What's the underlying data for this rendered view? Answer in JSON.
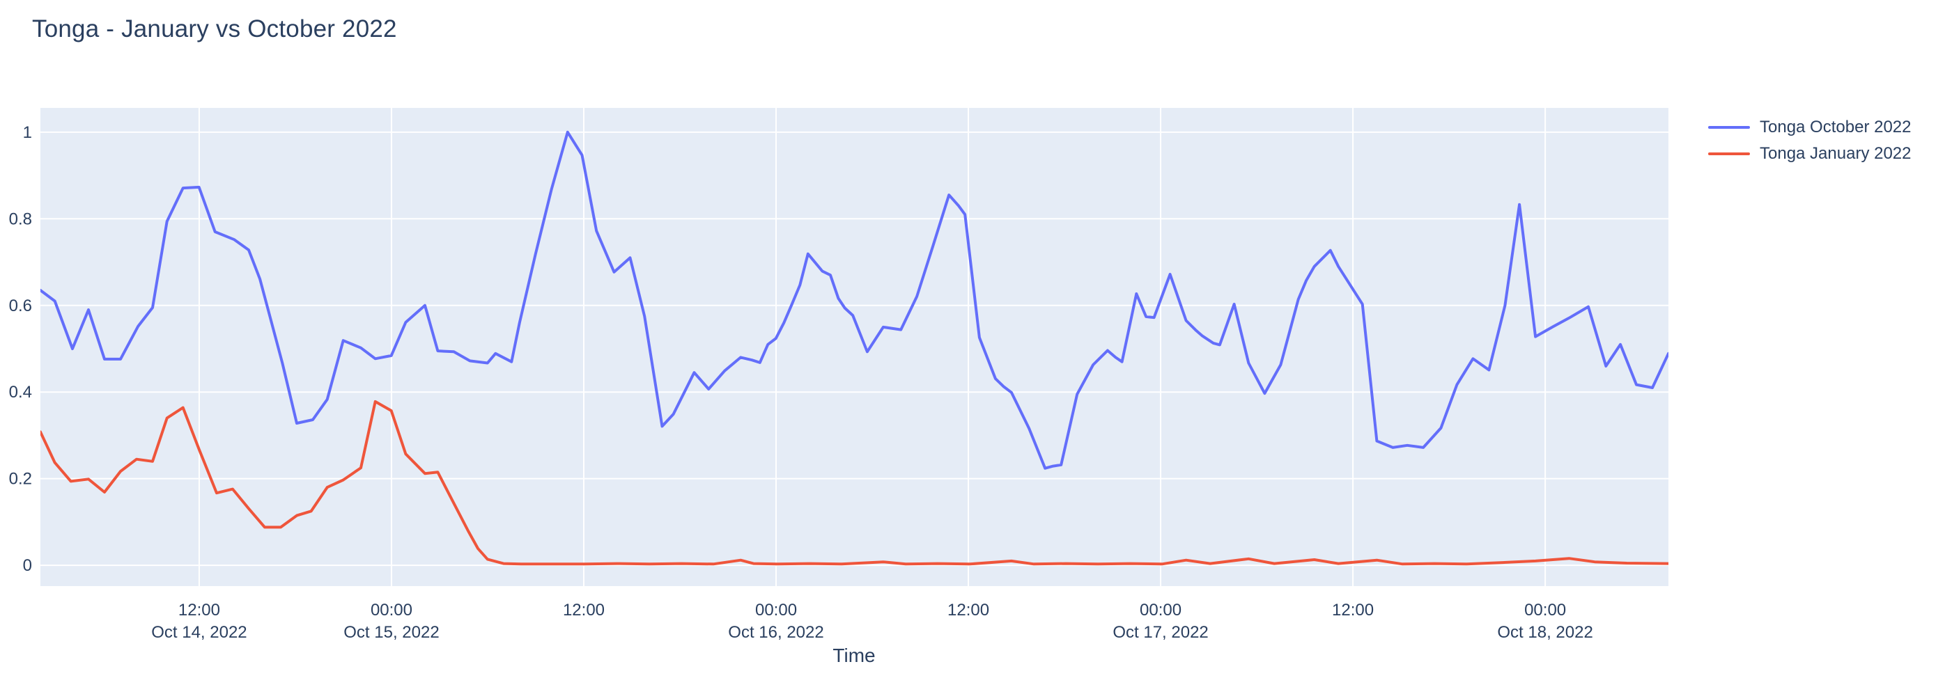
{
  "title": "Tonga - January vs October 2022",
  "x_axis_title": "Time",
  "legend": {
    "items": [
      {
        "label": "Tonga October 2022",
        "color": "#636EFA"
      },
      {
        "label": "Tonga January 2022",
        "color": "#EF553B"
      }
    ]
  },
  "chart_data": {
    "type": "line",
    "title": "Tonga - January vs October 2022",
    "xlabel": "Time",
    "ylabel": "",
    "x_unit": "hours (offset from plot left edge; ticks every 12 h)",
    "xlim": [
      0,
      101.6
    ],
    "ylim": [
      -0.048,
      1.056
    ],
    "grid": true,
    "legend_position": "right-outside-top",
    "colors": {
      "plot_bg": "#E5ECF6",
      "grid": "#FFFFFF",
      "text": "#2a3f5f",
      "paper": "#FFFFFF"
    },
    "y_ticks": [
      0,
      0.2,
      0.4,
      0.6,
      0.8,
      1
    ],
    "x_ticks": [
      {
        "t": 9.91,
        "time": "12:00",
        "date": "Oct 14, 2022"
      },
      {
        "t": 21.91,
        "time": "00:00",
        "date": "Oct 15, 2022"
      },
      {
        "t": 33.91,
        "time": "12:00",
        "date": ""
      },
      {
        "t": 45.91,
        "time": "00:00",
        "date": "Oct 16, 2022"
      },
      {
        "t": 57.91,
        "time": "12:00",
        "date": ""
      },
      {
        "t": 69.91,
        "time": "00:00",
        "date": "Oct 17, 2022"
      },
      {
        "t": 81.91,
        "time": "12:00",
        "date": ""
      },
      {
        "t": 93.91,
        "time": "00:00",
        "date": "Oct 18, 2022"
      }
    ],
    "series": [
      {
        "name": "Tonga October 2022",
        "color": "#636EFA",
        "x": [
          0,
          0.9,
          2,
          3,
          4,
          5,
          6.1,
          7,
          7.9,
          8.9,
          9.9,
          10.9,
          12.1,
          13,
          13.7,
          14.3,
          15.1,
          16,
          17,
          17.9,
          18.9,
          20,
          20.9,
          21.9,
          22.8,
          24,
          24.8,
          25.8,
          26.8,
          27.9,
          28.4,
          29.4,
          29.9,
          30.9,
          31.9,
          32.9,
          33.8,
          34.7,
          35.8,
          36.8,
          37.7,
          38.8,
          39.5,
          40.8,
          41.7,
          42.7,
          43.7,
          44.4,
          44.9,
          45.4,
          45.9,
          46.4,
          46.9,
          47.4,
          47.9,
          48.8,
          49.3,
          49.8,
          50.2,
          50.7,
          51.6,
          52.6,
          53.7,
          54.7,
          55.7,
          56.7,
          57.3,
          57.7,
          58.6,
          59.6,
          60.1,
          60.6,
          61.7,
          62.7,
          63.2,
          63.7,
          64.7,
          65.7,
          66.6,
          67.1,
          67.5,
          68.4,
          69,
          69.5,
          70.5,
          71.5,
          72.1,
          72.5,
          73.2,
          73.6,
          74.5,
          75.4,
          76.4,
          77.4,
          78.5,
          79,
          79.5,
          80.5,
          81,
          82.5,
          83.4,
          84.4,
          85.3,
          86.3,
          87.4,
          88.4,
          89.4,
          90.4,
          91.4,
          92.3,
          93.3,
          94.4,
          95.4,
          96.6,
          97.7,
          98.6,
          99.6,
          100.6,
          101.6
        ],
        "y": [
          0.635,
          0.61,
          0.5,
          0.59,
          0.476,
          0.476,
          0.552,
          0.595,
          0.794,
          0.871,
          0.873,
          0.77,
          0.752,
          0.728,
          0.661,
          0.578,
          0.467,
          0.328,
          0.336,
          0.383,
          0.519,
          0.502,
          0.477,
          0.484,
          0.561,
          0.6,
          0.495,
          0.493,
          0.472,
          0.467,
          0.489,
          0.47,
          0.56,
          0.719,
          0.869,
          1.0,
          0.947,
          0.772,
          0.677,
          0.71,
          0.575,
          0.321,
          0.349,
          0.445,
          0.407,
          0.449,
          0.48,
          0.474,
          0.468,
          0.51,
          0.524,
          0.56,
          0.603,
          0.647,
          0.719,
          0.679,
          0.67,
          0.616,
          0.594,
          0.577,
          0.493,
          0.55,
          0.544,
          0.621,
          0.737,
          0.855,
          0.83,
          0.81,
          0.526,
          0.431,
          0.413,
          0.399,
          0.316,
          0.224,
          0.229,
          0.232,
          0.395,
          0.463,
          0.496,
          0.48,
          0.47,
          0.627,
          0.574,
          0.572,
          0.672,
          0.565,
          0.543,
          0.53,
          0.513,
          0.509,
          0.603,
          0.467,
          0.397,
          0.463,
          0.614,
          0.658,
          0.69,
          0.727,
          0.69,
          0.603,
          0.287,
          0.272,
          0.277,
          0.272,
          0.317,
          0.417,
          0.477,
          0.451,
          0.6,
          0.833,
          0.528,
          0.551,
          0.571,
          0.597,
          0.46,
          0.51,
          0.417,
          0.41,
          0.489
        ]
      },
      {
        "name": "Tonga January 2022",
        "color": "#EF553B",
        "x": [
          0,
          0.9,
          1.9,
          3,
          4,
          5,
          6,
          7,
          7.9,
          8.4,
          8.9,
          9.9,
          11,
          12,
          13,
          14,
          15,
          16,
          16.9,
          17.9,
          18.9,
          20,
          20.9,
          21.9,
          22.8,
          24,
          24.8,
          25.8,
          26.7,
          27.3,
          27.9,
          28.9,
          30,
          32,
          34,
          36,
          38,
          40,
          42,
          43.7,
          44.5,
          46,
          48,
          50,
          52.6,
          54,
          56,
          58,
          60.6,
          62,
          64,
          66,
          68,
          70,
          71.5,
          73,
          75.4,
          77,
          79.5,
          81,
          83.4,
          85,
          87,
          89,
          91,
          93.3,
          95.4,
          97,
          99,
          101.6
        ],
        "y": [
          0.308,
          0.237,
          0.194,
          0.199,
          0.169,
          0.217,
          0.245,
          0.24,
          0.34,
          0.352,
          0.364,
          0.268,
          0.167,
          0.176,
          0.131,
          0.088,
          0.088,
          0.115,
          0.125,
          0.18,
          0.197,
          0.225,
          0.378,
          0.357,
          0.257,
          0.212,
          0.215,
          0.143,
          0.079,
          0.039,
          0.014,
          0.004,
          0.003,
          0.003,
          0.003,
          0.004,
          0.003,
          0.004,
          0.003,
          0.012,
          0.004,
          0.003,
          0.004,
          0.003,
          0.008,
          0.003,
          0.004,
          0.003,
          0.01,
          0.003,
          0.004,
          0.003,
          0.004,
          0.003,
          0.012,
          0.004,
          0.015,
          0.004,
          0.013,
          0.004,
          0.012,
          0.003,
          0.004,
          0.003,
          0.006,
          0.01,
          0.016,
          0.008,
          0.005,
          0.004
        ]
      }
    ]
  }
}
